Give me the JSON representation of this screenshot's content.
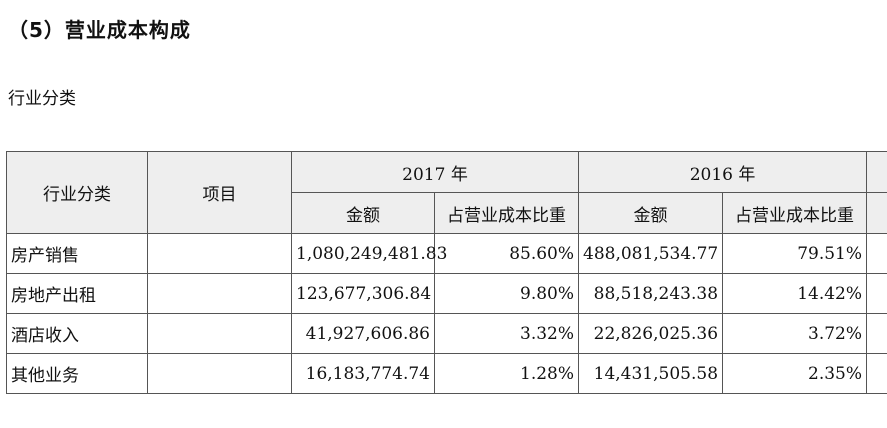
{
  "section_title": "（5）营业成本构成",
  "subtitle": "行业分类",
  "table": {
    "header": {
      "industry": "行业分类",
      "item": "项目",
      "year_2017": "2017 年",
      "year_2016": "2016 年",
      "amount": "金额",
      "share": "占营业成本比重"
    },
    "rows": [
      {
        "industry": "房产销售",
        "item": "",
        "amount_2017": "1,080,249,481.83",
        "share_2017": "85.60%",
        "amount_2016": "488,081,534.77",
        "share_2016": "79.51%"
      },
      {
        "industry": "房地产出租",
        "item": "",
        "amount_2017": "123,677,306.84",
        "share_2017": "9.80%",
        "amount_2016": "88,518,243.38",
        "share_2016": "14.42%"
      },
      {
        "industry": "酒店收入",
        "item": "",
        "amount_2017": "41,927,606.86",
        "share_2017": "3.32%",
        "amount_2016": "22,826,025.36",
        "share_2016": "3.72%"
      },
      {
        "industry": "其他业务",
        "item": "",
        "amount_2017": "16,183,774.74",
        "share_2017": "1.28%",
        "amount_2016": "14,431,505.58",
        "share_2016": "2.35%"
      }
    ]
  }
}
